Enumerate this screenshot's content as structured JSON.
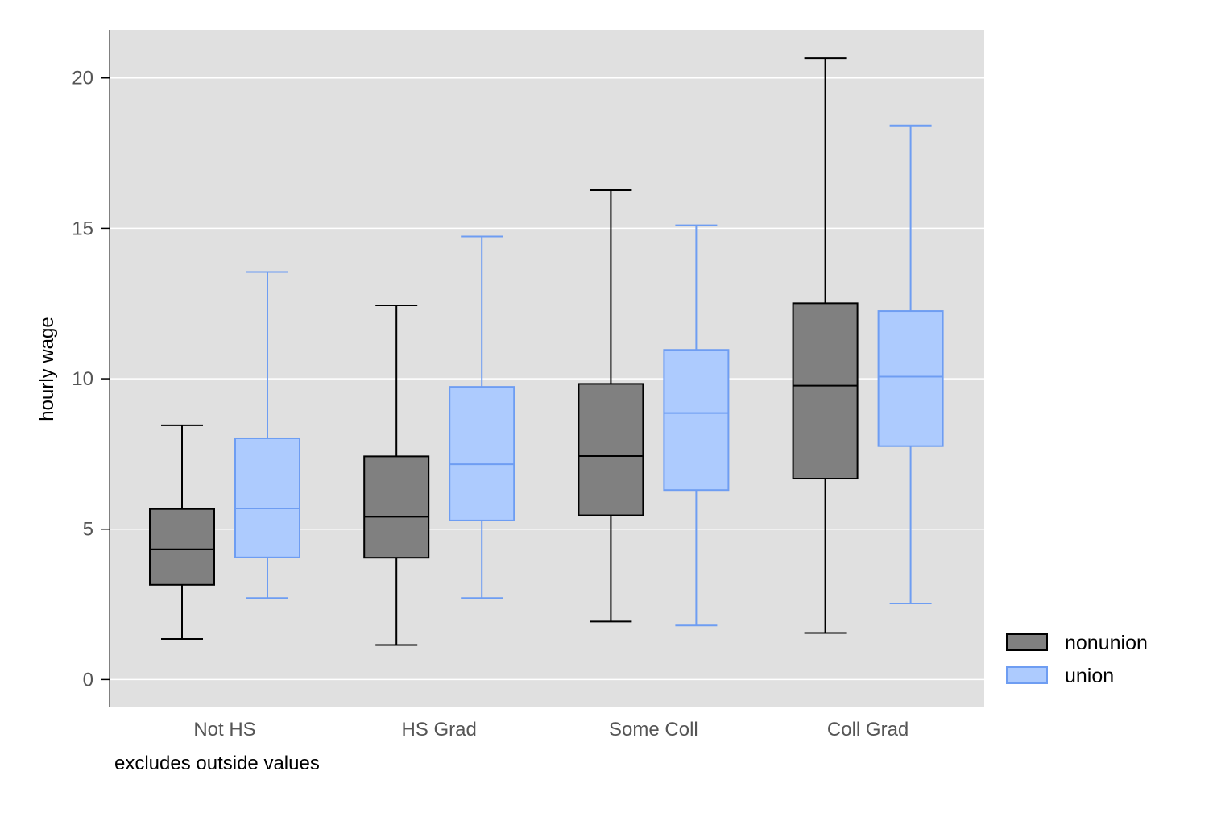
{
  "chart_data": {
    "type": "box",
    "ylabel": "hourly wage",
    "xlabel": "",
    "note": "excludes outside values",
    "ylim": [
      -0.9,
      21.6
    ],
    "yticks": [
      0,
      5,
      10,
      15,
      20
    ],
    "ytick_labels": [
      "0",
      "5",
      "10",
      "15",
      "20"
    ],
    "grid": true,
    "legend_position": "right",
    "categories": [
      "Not HS",
      "HS Grad",
      "Some Coll",
      "Coll Grad"
    ],
    "series": [
      {
        "name": "nonunion",
        "fill": "#808080",
        "stroke": "#000000",
        "boxes": [
          {
            "whisker_low": 1.35,
            "q1": 3.15,
            "median": 4.33,
            "q3": 5.67,
            "whisker_high": 8.45
          },
          {
            "whisker_low": 1.15,
            "q1": 4.05,
            "median": 5.41,
            "q3": 7.42,
            "whisker_high": 12.44
          },
          {
            "whisker_low": 1.93,
            "q1": 5.46,
            "median": 7.43,
            "q3": 9.83,
            "whisker_high": 16.27
          },
          {
            "whisker_low": 1.55,
            "q1": 6.68,
            "median": 9.77,
            "q3": 12.51,
            "whisker_high": 20.66
          }
        ]
      },
      {
        "name": "union",
        "fill": "#adcbfe",
        "stroke": "#6e9df2",
        "boxes": [
          {
            "whisker_low": 2.71,
            "q1": 4.06,
            "median": 5.69,
            "q3": 8.02,
            "whisker_high": 13.55
          },
          {
            "whisker_low": 2.71,
            "q1": 5.29,
            "median": 7.16,
            "q3": 9.73,
            "whisker_high": 14.73
          },
          {
            "whisker_low": 1.8,
            "q1": 6.3,
            "median": 8.86,
            "q3": 10.96,
            "whisker_high": 15.1
          },
          {
            "whisker_low": 2.53,
            "q1": 7.76,
            "median": 10.07,
            "q3": 12.25,
            "whisker_high": 18.42
          }
        ]
      }
    ],
    "colors": {
      "plot_background": "#e0e0e0",
      "grid": "#ffffff",
      "axis": "#000000"
    }
  }
}
